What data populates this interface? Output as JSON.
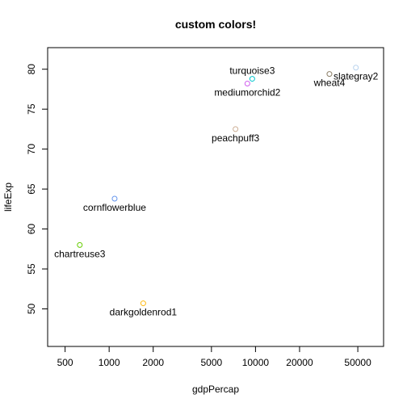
{
  "chart_data": {
    "type": "scatter",
    "title": "custom colors!",
    "xlabel": "gdpPercap",
    "ylabel": "lifeExp",
    "x_scale": "log",
    "xlim": [
      380,
      75000
    ],
    "ylim": [
      45.3,
      82.7
    ],
    "x_ticks": [
      500,
      1000,
      2000,
      5000,
      10000,
      20000,
      50000
    ],
    "x_tick_labels": [
      "500",
      "1000",
      "2000",
      "5000",
      "10000",
      "20000",
      "50000"
    ],
    "y_ticks": [
      50,
      55,
      60,
      65,
      70,
      75,
      80
    ],
    "y_tick_labels": [
      "50",
      "55",
      "60",
      "65",
      "70",
      "75",
      "80"
    ],
    "grid": false,
    "points": [
      {
        "label": "cornflowerblue",
        "x": 1090,
        "y": 63.8,
        "color": "#6495ED",
        "label_pos": "below"
      },
      {
        "label": "chartreuse3",
        "x": 630,
        "y": 58.0,
        "color": "#66CD00",
        "label_pos": "below"
      },
      {
        "label": "darkgoldenrod1",
        "x": 1710,
        "y": 50.7,
        "color": "#FFB90F",
        "label_pos": "below"
      },
      {
        "label": "peachpuff3",
        "x": 7300,
        "y": 72.5,
        "color": "#CDAF95",
        "label_pos": "below"
      },
      {
        "label": "mediumorchid2",
        "x": 8800,
        "y": 78.2,
        "color": "#D15FEE",
        "label_pos": "below"
      },
      {
        "label": "turquoise3",
        "x": 9500,
        "y": 78.8,
        "color": "#00C5CD",
        "label_pos": "above"
      },
      {
        "label": "wheat4",
        "x": 32000,
        "y": 79.4,
        "color": "#8B7E66",
        "label_pos": "below"
      },
      {
        "label": "slategray2",
        "x": 48500,
        "y": 80.2,
        "color": "#B9D3EE",
        "label_pos": "below"
      }
    ]
  }
}
